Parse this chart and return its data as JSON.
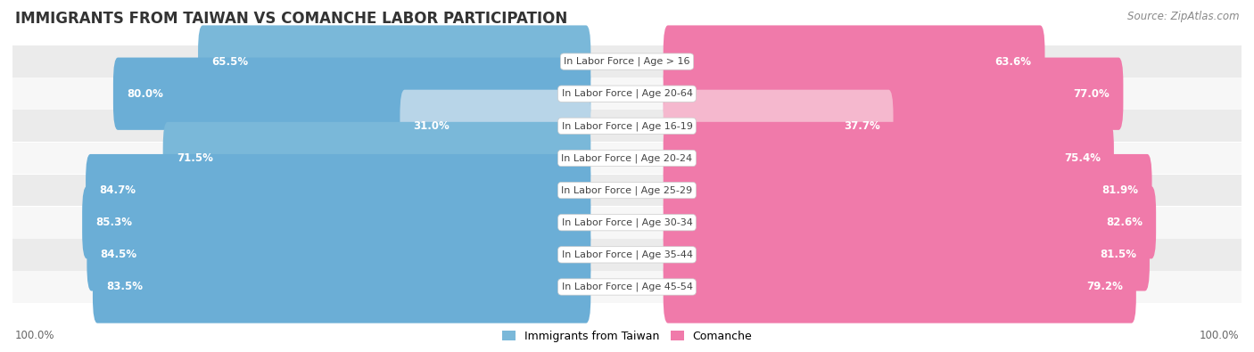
{
  "title": "IMMIGRANTS FROM TAIWAN VS COMANCHE LABOR PARTICIPATION",
  "source": "Source: ZipAtlas.com",
  "categories": [
    "In Labor Force | Age > 16",
    "In Labor Force | Age 20-64",
    "In Labor Force | Age 16-19",
    "In Labor Force | Age 20-24",
    "In Labor Force | Age 25-29",
    "In Labor Force | Age 30-34",
    "In Labor Force | Age 35-44",
    "In Labor Force | Age 45-54"
  ],
  "taiwan_values": [
    65.5,
    80.0,
    31.0,
    71.5,
    84.7,
    85.3,
    84.5,
    83.5
  ],
  "comanche_values": [
    63.6,
    77.0,
    37.7,
    75.4,
    81.9,
    82.6,
    81.5,
    79.2
  ],
  "taiwan_colors": [
    "#7ab8d9",
    "#6baed6",
    "#b8d5e8",
    "#7ab8d9",
    "#6baed6",
    "#6baed6",
    "#6baed6",
    "#6baed6"
  ],
  "comanche_colors": [
    "#f07aaa",
    "#f07aaa",
    "#f5b8ce",
    "#f07aaa",
    "#f07aaa",
    "#f07aaa",
    "#f07aaa",
    "#f07aaa"
  ],
  "taiwan_legend_color": "#7ab8d9",
  "comanche_legend_color": "#f07aaa",
  "row_bg_even": "#ebebeb",
  "row_bg_odd": "#f7f7f7",
  "max_value": 100.0,
  "legend_taiwan": "Immigrants from Taiwan",
  "legend_comanche": "Comanche",
  "axis_label_left": "100.0%",
  "axis_label_right": "100.0%",
  "title_fontsize": 12,
  "source_fontsize": 8.5,
  "bar_label_fontsize": 8.5,
  "category_fontsize": 8,
  "legend_fontsize": 9
}
